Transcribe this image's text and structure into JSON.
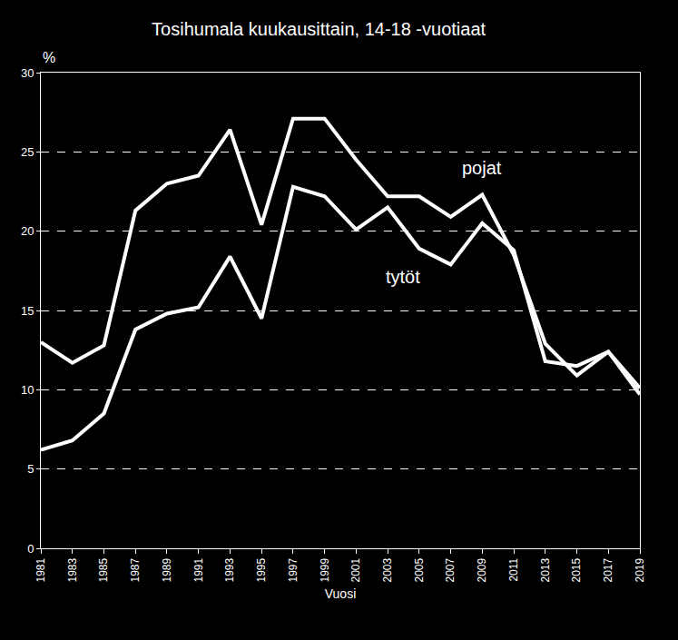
{
  "chart_data": {
    "type": "line",
    "title": "Tosihumala kuukausittain, 14-18 -vuotiaat",
    "x_label": "Vuosi",
    "y_label": "%",
    "x": [
      1981,
      1983,
      1985,
      1987,
      1989,
      1991,
      1993,
      1995,
      1997,
      1999,
      2001,
      2003,
      2005,
      2007,
      2009,
      2011,
      2013,
      2015,
      2017,
      2019
    ],
    "series": [
      {
        "name": "pojat",
        "color": "#ffffff",
        "values": [
          13.0,
          11.7,
          12.8,
          21.3,
          23.0,
          23.5,
          26.4,
          20.4,
          27.1,
          27.1,
          24.5,
          22.2,
          22.2,
          20.9,
          22.3,
          18.5,
          12.9,
          10.9,
          12.4,
          10.1
        ]
      },
      {
        "name": "tytöt",
        "color": "#ffffff",
        "values": [
          6.2,
          6.8,
          8.5,
          13.8,
          14.8,
          15.2,
          18.4,
          14.5,
          22.8,
          22.2,
          20.1,
          21.5,
          18.9,
          17.9,
          20.5,
          18.8,
          11.8,
          11.5,
          12.4,
          9.7
        ]
      }
    ],
    "annotations": [
      {
        "text": "pojat",
        "x": 2009,
        "y": 24
      },
      {
        "text": "tytöt",
        "x": 2004,
        "y": 17.1
      }
    ],
    "xlim": [
      1981,
      2019
    ],
    "xticks": [
      1981,
      1983,
      1985,
      1987,
      1989,
      1991,
      1993,
      1995,
      1997,
      1999,
      2001,
      2003,
      2005,
      2007,
      2009,
      2011,
      2013,
      2015,
      2017,
      2019
    ],
    "ylim": [
      0,
      30
    ],
    "yticks": [
      0,
      5,
      10,
      15,
      20,
      25,
      30
    ],
    "grid": true
  }
}
